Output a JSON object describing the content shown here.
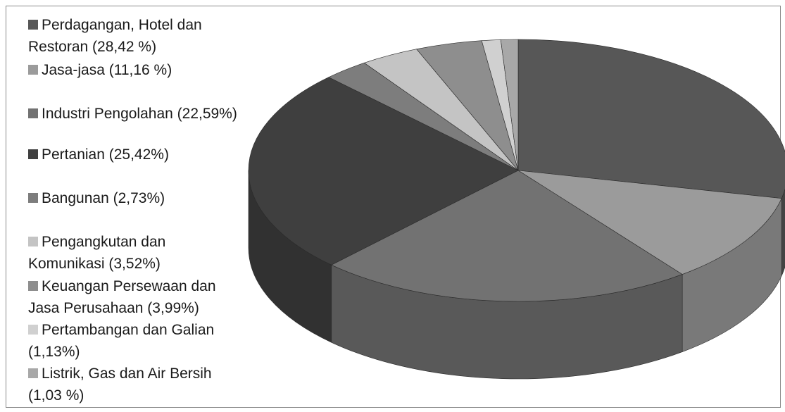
{
  "chart_data": {
    "type": "pie",
    "style": "3d",
    "legend_position": "left",
    "slices": [
      {
        "label": "Perdagangan, Hotel dan Restoran (28,42 %)",
        "lines": [
          "Perdagangan, Hotel dan",
          "Restoran (28,42 %)"
        ],
        "value": 28.42,
        "color": "#575757"
      },
      {
        "label": "Jasa-jasa (11,16 %)",
        "lines": [
          "Jasa-jasa (11,16 %)"
        ],
        "value": 11.16,
        "color": "#9b9b9b"
      },
      {
        "label": "Industri Pengolahan (22,59%)",
        "lines": [
          "Industri Pengolahan (22,59%)"
        ],
        "value": 22.59,
        "color": "#727272"
      },
      {
        "label": "Pertanian (25,42%)",
        "lines": [
          "Pertanian (25,42%)"
        ],
        "value": 25.42,
        "color": "#3f3f3f"
      },
      {
        "label": "Bangunan (2,73%)",
        "lines": [
          "Bangunan (2,73%)"
        ],
        "value": 2.73,
        "color": "#7d7d7d"
      },
      {
        "label": "Pengangkutan dan Komunikasi (3,52%)",
        "lines": [
          "Pengangkutan dan",
          "Komunikasi (3,52%)"
        ],
        "value": 3.52,
        "color": "#c4c4c4"
      },
      {
        "label": "Keuangan Persewaan dan Jasa Perusahaan (3,99%)",
        "lines": [
          "Keuangan Persewaan dan",
          "Jasa Perusahaan (3,99%)"
        ],
        "value": 3.99,
        "color": "#8e8e8e"
      },
      {
        "label": "Pertambangan dan Galian (1,13%)",
        "lines": [
          "Pertambangan dan Galian",
          "(1,13%)"
        ],
        "value": 1.13,
        "color": "#d0d0d0"
      },
      {
        "label": "Listrik, Gas dan Air Bersih (1,03 %)",
        "lines": [
          "Listrik, Gas dan Air Bersih",
          "(1,03 %)"
        ],
        "value": 1.03,
        "color": "#a8a8a8"
      }
    ]
  }
}
